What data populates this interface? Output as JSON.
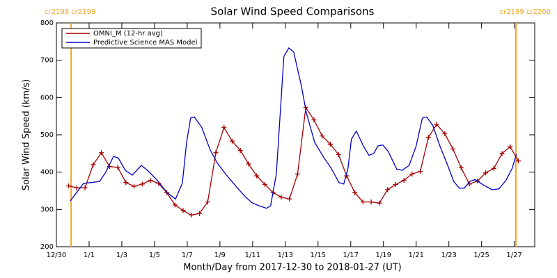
{
  "chart_data": {
    "type": "line",
    "title": "Solar Wind Speed Comparisons",
    "xlabel": "Month/Day from 2017-12-30 to 2018-01-27 (UT)",
    "ylabel": "Solar Wind Speed (km/s)",
    "xlim": [
      0,
      29.25
    ],
    "xticks": [
      {
        "value": 0,
        "label": "12/30"
      },
      {
        "value": 2,
        "label": "1/1"
      },
      {
        "value": 4,
        "label": "1/3"
      },
      {
        "value": 6,
        "label": "1/5"
      },
      {
        "value": 8,
        "label": "1/7"
      },
      {
        "value": 10,
        "label": "1/9"
      },
      {
        "value": 12,
        "label": "1/11"
      },
      {
        "value": 14,
        "label": "1/13"
      },
      {
        "value": 16,
        "label": "1/15"
      },
      {
        "value": 18,
        "label": "1/17"
      },
      {
        "value": 20,
        "label": "1/19"
      },
      {
        "value": 22,
        "label": "1/21"
      },
      {
        "value": 24,
        "label": "1/23"
      },
      {
        "value": 26,
        "label": "1/25"
      },
      {
        "value": 28,
        "label": "1/27"
      }
    ],
    "ylim": [
      200,
      800
    ],
    "yticks": [
      200,
      300,
      400,
      500,
      600,
      700,
      800
    ],
    "legend": "upper left",
    "annotations": [
      {
        "x": 0.9,
        "text": "cr2198 cr2199",
        "color": "#f5a623"
      },
      {
        "x": 28.1,
        "text": "cr2199 cr2200",
        "color": "#f5a623"
      }
    ],
    "series": [
      {
        "name": "OMNI_M (12-hr avg)",
        "color": "#a50000",
        "marker": "+",
        "x": [
          0.75,
          1.25,
          1.75,
          2.25,
          2.75,
          3.25,
          3.75,
          4.25,
          4.75,
          5.25,
          5.75,
          6.25,
          6.75,
          7.25,
          7.75,
          8.25,
          8.75,
          9.25,
          9.75,
          10.25,
          10.75,
          11.25,
          11.75,
          12.25,
          12.75,
          13.25,
          13.75,
          14.25,
          14.75,
          15.25,
          15.75,
          16.25,
          16.75,
          17.25,
          17.75,
          18.25,
          18.75,
          19.25,
          19.75,
          20.25,
          20.75,
          21.25,
          21.75,
          22.25,
          22.75,
          23.25,
          23.75,
          24.25,
          24.75,
          25.25,
          25.75,
          26.25,
          26.75,
          27.25,
          27.75,
          28.25
        ],
        "values": [
          363,
          358,
          358,
          420,
          452,
          415,
          413,
          372,
          362,
          368,
          378,
          370,
          345,
          312,
          297,
          285,
          289,
          320,
          452,
          520,
          483,
          458,
          422,
          390,
          367,
          345,
          333,
          328,
          395,
          573,
          540,
          497,
          475,
          447,
          390,
          345,
          320,
          320,
          317,
          353,
          367,
          378,
          395,
          402,
          493,
          528,
          503,
          462,
          412,
          368,
          376,
          398,
          410,
          450,
          468,
          430
        ]
      },
      {
        "name": "Predictive Science MAS Model",
        "color": "#0000c8",
        "x": [
          0.85,
          1.23,
          1.66,
          2.13,
          2.64,
          3.02,
          3.49,
          3.79,
          4.21,
          4.64,
          5.19,
          5.57,
          6.13,
          6.77,
          7.28,
          7.7,
          7.96,
          8.21,
          8.43,
          8.89,
          9.4,
          9.83,
          10.38,
          11.02,
          11.53,
          11.96,
          12.38,
          12.85,
          13.1,
          13.45,
          13.91,
          14.21,
          14.51,
          14.98,
          15.28,
          15.79,
          16.34,
          16.81,
          17.28,
          17.57,
          17.83,
          18.04,
          18.34,
          18.77,
          19.11,
          19.4,
          19.66,
          19.96,
          20.3,
          20.81,
          21.15,
          21.57,
          22.0,
          22.38,
          22.64,
          23.02,
          23.45,
          23.91,
          24.3,
          24.64,
          24.94,
          25.28,
          25.62,
          26.13,
          26.64,
          27.06,
          27.49,
          27.87,
          28.13
        ],
        "values": [
          323,
          345,
          370,
          372,
          375,
          400,
          442,
          438,
          405,
          392,
          418,
          405,
          380,
          345,
          328,
          370,
          480,
          545,
          548,
          520,
          460,
          425,
          393,
          360,
          335,
          318,
          310,
          303,
          310,
          395,
          710,
          733,
          722,
          632,
          560,
          480,
          440,
          410,
          372,
          368,
          410,
          488,
          510,
          470,
          445,
          450,
          470,
          473,
          455,
          408,
          405,
          418,
          470,
          545,
          548,
          525,
          470,
          420,
          375,
          357,
          357,
          375,
          380,
          365,
          353,
          355,
          378,
          410,
          448
        ]
      }
    ]
  }
}
